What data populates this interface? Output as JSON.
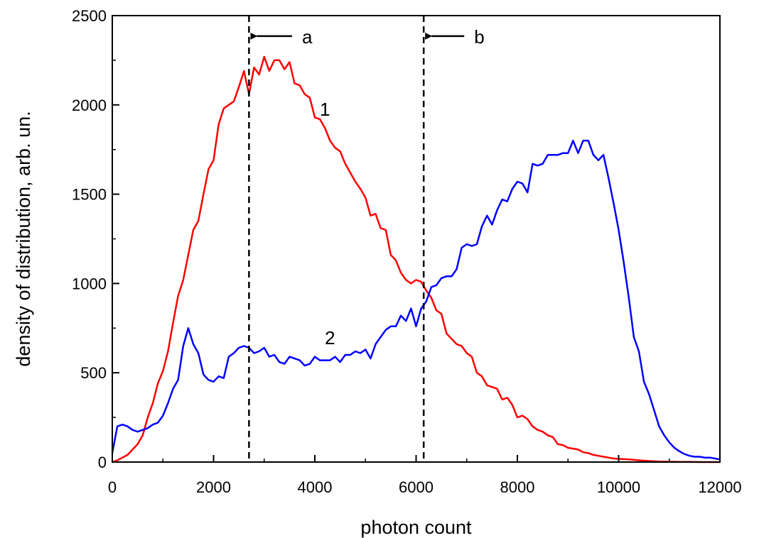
{
  "chart_data": {
    "type": "line",
    "xlabel": "photon count",
    "ylabel": "density of distribution, arb. un.",
    "xlim": [
      0,
      12000
    ],
    "ylim": [
      0,
      2500
    ],
    "xticks": [
      0,
      2000,
      4000,
      6000,
      8000,
      10000,
      12000
    ],
    "yticks": [
      0,
      500,
      1000,
      1500,
      2000,
      2500
    ],
    "x_minor_step": 1000,
    "y_minor_step": 250,
    "grid": false,
    "series": [
      {
        "label": "1",
        "color": "#ff0000",
        "x": [
          0,
          100,
          200,
          300,
          400,
          500,
          600,
          700,
          800,
          900,
          1000,
          1100,
          1200,
          1300,
          1400,
          1500,
          1600,
          1700,
          1800,
          1900,
          2000,
          2100,
          2200,
          2300,
          2400,
          2500,
          2600,
          2700,
          2800,
          2900,
          3000,
          3100,
          3200,
          3300,
          3400,
          3500,
          3600,
          3700,
          3800,
          3900,
          4000,
          4100,
          4200,
          4300,
          4400,
          4500,
          4600,
          4700,
          4800,
          4900,
          5000,
          5100,
          5200,
          5300,
          5400,
          5500,
          5600,
          5700,
          5800,
          5900,
          6000,
          6100,
          6200,
          6300,
          6400,
          6500,
          6600,
          6700,
          6800,
          6900,
          7000,
          7100,
          7200,
          7300,
          7400,
          7500,
          7600,
          7700,
          7800,
          7900,
          8000,
          8100,
          8200,
          8300,
          8400,
          8500,
          8600,
          8700,
          8800,
          8900,
          9000,
          9100,
          9200,
          9300,
          9400,
          9500,
          9600,
          9700,
          9800,
          9900,
          10000,
          10200,
          10400,
          10600,
          10800,
          11000,
          11200,
          11400,
          11600,
          11800,
          12000
        ],
        "y": [
          0,
          10,
          25,
          40,
          70,
          100,
          150,
          250,
          330,
          440,
          510,
          620,
          780,
          930,
          1020,
          1160,
          1300,
          1350,
          1500,
          1640,
          1690,
          1890,
          1980,
          2000,
          2020,
          2100,
          2190,
          2060,
          2210,
          2170,
          2270,
          2190,
          2250,
          2250,
          2200,
          2240,
          2120,
          2110,
          2060,
          2040,
          1930,
          1920,
          1870,
          1800,
          1760,
          1740,
          1670,
          1620,
          1570,
          1530,
          1480,
          1380,
          1390,
          1310,
          1300,
          1160,
          1130,
          1060,
          1020,
          1000,
          1020,
          1010,
          960,
          920,
          850,
          830,
          720,
          690,
          660,
          650,
          610,
          590,
          500,
          480,
          430,
          420,
          410,
          350,
          360,
          320,
          250,
          260,
          240,
          200,
          180,
          170,
          150,
          140,
          100,
          95,
          80,
          75,
          70,
          55,
          50,
          40,
          35,
          30,
          25,
          20,
          18,
          15,
          10,
          6,
          3,
          2,
          1,
          1,
          0,
          0,
          0
        ],
        "label_at": [
          4200,
          1980
        ]
      },
      {
        "label": "2",
        "color": "#0000ff",
        "x": [
          0,
          100,
          200,
          300,
          400,
          500,
          600,
          700,
          800,
          900,
          1000,
          1100,
          1200,
          1300,
          1400,
          1500,
          1600,
          1700,
          1800,
          1900,
          2000,
          2100,
          2200,
          2300,
          2400,
          2500,
          2600,
          2700,
          2800,
          2900,
          3000,
          3100,
          3200,
          3300,
          3400,
          3500,
          3600,
          3700,
          3800,
          3900,
          4000,
          4100,
          4200,
          4300,
          4400,
          4500,
          4600,
          4700,
          4800,
          4900,
          5000,
          5100,
          5200,
          5300,
          5400,
          5500,
          5600,
          5700,
          5800,
          5900,
          6000,
          6100,
          6200,
          6300,
          6400,
          6500,
          6600,
          6700,
          6800,
          6900,
          7000,
          7100,
          7200,
          7300,
          7400,
          7500,
          7600,
          7700,
          7800,
          7900,
          8000,
          8100,
          8200,
          8300,
          8400,
          8500,
          8600,
          8700,
          8800,
          8900,
          9000,
          9100,
          9200,
          9300,
          9400,
          9500,
          9600,
          9700,
          9800,
          9900,
          10000,
          10100,
          10200,
          10300,
          10400,
          10500,
          10600,
          10700,
          10800,
          10900,
          11000,
          11100,
          11200,
          11300,
          11400,
          11500,
          11600,
          11700,
          11800,
          11900,
          12000
        ],
        "y": [
          50,
          200,
          210,
          200,
          180,
          170,
          180,
          190,
          210,
          220,
          260,
          330,
          410,
          460,
          650,
          750,
          660,
          610,
          490,
          460,
          450,
          480,
          470,
          590,
          610,
          640,
          650,
          640,
          610,
          620,
          640,
          590,
          600,
          560,
          550,
          590,
          580,
          570,
          540,
          550,
          590,
          570,
          570,
          570,
          590,
          560,
          600,
          600,
          620,
          610,
          630,
          580,
          660,
          700,
          740,
          760,
          760,
          820,
          790,
          860,
          760,
          860,
          900,
          980,
          990,
          1030,
          1040,
          1040,
          1080,
          1200,
          1220,
          1210,
          1220,
          1320,
          1380,
          1330,
          1410,
          1470,
          1460,
          1530,
          1570,
          1560,
          1510,
          1670,
          1660,
          1670,
          1720,
          1720,
          1720,
          1730,
          1730,
          1800,
          1730,
          1800,
          1800,
          1720,
          1690,
          1720,
          1590,
          1450,
          1300,
          1120,
          920,
          700,
          620,
          450,
          380,
          290,
          200,
          150,
          110,
          80,
          60,
          45,
          35,
          30,
          30,
          25,
          25,
          20,
          15
        ],
        "label_at": [
          4300,
          700
        ]
      }
    ],
    "annotations": [
      {
        "label": "a",
        "x": 2700,
        "arrow_to": 2700,
        "arrow_from": 3550,
        "arrow_y": 2385
      },
      {
        "label": "b",
        "x": 6150,
        "arrow_to": 6150,
        "arrow_from": 6950,
        "arrow_y": 2385
      }
    ]
  }
}
